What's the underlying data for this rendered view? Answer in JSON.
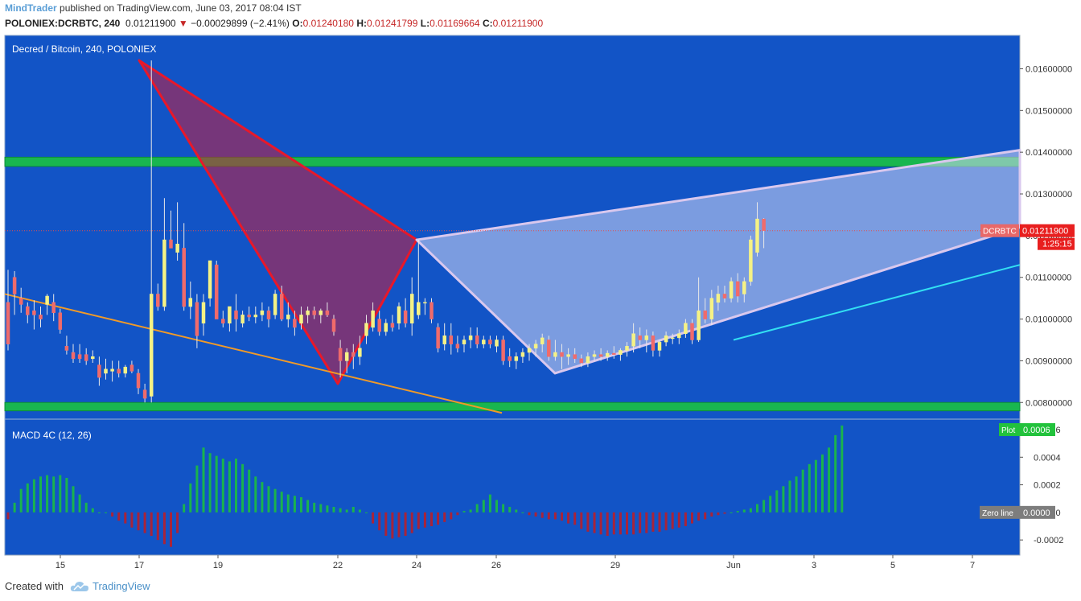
{
  "header": {
    "author": "MindTrader",
    "published": "published on TradingView.com, June 03, 2017 08:04 IST",
    "symbol": "POLONIEX:DCRBTC, 240",
    "last": "0.01211900",
    "arrow": "▼",
    "change": "−0.00029899 (−2.41%)",
    "o_label": "O:",
    "o_value": "0.01240180",
    "h_label": "H:",
    "h_value": "0.01241799",
    "l_label": "L:",
    "l_value": "0.01169664",
    "c_label": "C:",
    "c_value": "0.01211900"
  },
  "pane_title": "Decred / Bitcoin, 240, POLONIEX",
  "price_label": {
    "tag": "DCRBTC",
    "value": "0.01211900",
    "countdown": "1:25:15"
  },
  "macd_title": "MACD 4C (12, 26)",
  "macd_labels": {
    "plot_tag": "Plot",
    "plot_value": "0.0006",
    "zero_tag": "Zero line",
    "zero_value": "0.0000"
  },
  "footer": {
    "created_with": "Created with",
    "brand": "TradingView"
  },
  "colors": {
    "background": "#1254c6",
    "up_candle": "#f5f285",
    "down_candle": "#f06b6b",
    "zone": "#19b64f",
    "red_pattern": "#e8182a",
    "white_pattern": "#d9c8ee",
    "trendline_orange": "#f09a28",
    "trendline_cyan": "#33e0f2",
    "macd_green": "#1ab34d",
    "macd_red": "#a8243a"
  },
  "chart_data": [
    {
      "type": "candlestick",
      "title": "Decred / Bitcoin, 240, POLONIEX",
      "x_ticks": [
        "15",
        "17",
        "19",
        "22",
        "24",
        "26",
        "29",
        "Jun",
        "3",
        "5",
        "7"
      ],
      "y_ticks": [
        "0.00800000",
        "0.00900000",
        "0.01000000",
        "0.01100000",
        "0.01200000",
        "0.01300000",
        "0.01400000",
        "0.01500000",
        "0.01600000"
      ],
      "ylim": [
        0.0076,
        0.0168
      ],
      "grid": false,
      "last_price": 0.012119,
      "candles": [
        [
          0.0104,
          0.01118,
          0.00925,
          0.0094
        ],
        [
          0.011,
          0.01115,
          0.0101,
          0.0106
        ],
        [
          0.0105,
          0.01075,
          0.01015,
          0.01035
        ],
        [
          0.0103,
          0.0104,
          0.0099,
          0.0101
        ],
        [
          0.0102,
          0.01045,
          0.00975,
          0.0101
        ],
        [
          0.0101,
          0.0103,
          0.0098,
          0.01
        ],
        [
          0.01035,
          0.0106,
          0.0101,
          0.01055
        ],
        [
          0.0104,
          0.0106,
          0.00995,
          0.01015
        ],
        [
          0.01015,
          0.01025,
          0.00965,
          0.00975
        ],
        [
          0.00935,
          0.0096,
          0.00915,
          0.00925
        ],
        [
          0.0092,
          0.0094,
          0.00895,
          0.00905
        ],
        [
          0.00915,
          0.0094,
          0.00895,
          0.00905
        ],
        [
          0.00915,
          0.0093,
          0.0089,
          0.009
        ],
        [
          0.00905,
          0.00925,
          0.00895,
          0.0091
        ],
        [
          0.0089,
          0.0091,
          0.0084,
          0.0086
        ],
        [
          0.0087,
          0.00905,
          0.00855,
          0.0088
        ],
        [
          0.00875,
          0.009,
          0.0085,
          0.0088
        ],
        [
          0.0088,
          0.009,
          0.0086,
          0.0087
        ],
        [
          0.0087,
          0.0089,
          0.0086,
          0.00885
        ],
        [
          0.0089,
          0.009,
          0.0087,
          0.00875
        ],
        [
          0.0087,
          0.0088,
          0.0082,
          0.00835
        ],
        [
          0.0083,
          0.00845,
          0.008,
          0.0081
        ],
        [
          0.00815,
          0.0162,
          0.008,
          0.0106
        ],
        [
          0.0106,
          0.01085,
          0.0102,
          0.0103
        ],
        [
          0.0103,
          0.0129,
          0.0102,
          0.0119
        ],
        [
          0.0119,
          0.0126,
          0.0117,
          0.0117
        ],
        [
          0.0116,
          0.0128,
          0.0114,
          0.0118
        ],
        [
          0.0117,
          0.0123,
          0.0102,
          0.0103
        ],
        [
          0.0103,
          0.0109,
          0.01,
          0.0105
        ],
        [
          0.0104,
          0.0106,
          0.0093,
          0.0096
        ],
        [
          0.0099,
          0.0106,
          0.0096,
          0.0104
        ],
        [
          0.0105,
          0.0114,
          0.0103,
          0.0114
        ],
        [
          0.0113,
          0.0114,
          0.01,
          0.01
        ],
        [
          0.01,
          0.0102,
          0.0098,
          0.0099
        ],
        [
          0.0099,
          0.0103,
          0.0097,
          0.0103
        ],
        [
          0.0102,
          0.0106,
          0.0097,
          0.01
        ],
        [
          0.0099,
          0.0102,
          0.0098,
          0.0101
        ],
        [
          0.0101,
          0.0103,
          0.00995,
          0.01005
        ],
        [
          0.01005,
          0.0103,
          0.0099,
          0.0101
        ],
        [
          0.0101,
          0.0104,
          0.00995,
          0.0102
        ],
        [
          0.0102,
          0.0103,
          0.0098,
          0.01
        ],
        [
          0.0101,
          0.0107,
          0.01,
          0.0106
        ],
        [
          0.0106,
          0.0108,
          0.00995,
          0.01
        ],
        [
          0.01,
          0.0104,
          0.0098,
          0.0101
        ],
        [
          0.01,
          0.0102,
          0.0096,
          0.0098
        ],
        [
          0.0099,
          0.0103,
          0.00975,
          0.0101
        ],
        [
          0.0101,
          0.0103,
          0.0099,
          0.0102
        ],
        [
          0.0102,
          0.0103,
          0.01,
          0.0101
        ],
        [
          0.0101,
          0.01025,
          0.0099,
          0.0102
        ],
        [
          0.0102,
          0.0104,
          0.01005,
          0.0101
        ],
        [
          0.01,
          0.0101,
          0.0096,
          0.0097
        ],
        [
          0.0093,
          0.0095,
          0.0086,
          0.009
        ],
        [
          0.009,
          0.0093,
          0.0087,
          0.0092
        ],
        [
          0.0092,
          0.0094,
          0.0088,
          0.0091
        ],
        [
          0.0091,
          0.0096,
          0.0089,
          0.0093
        ],
        [
          0.0096,
          0.0101,
          0.0094,
          0.0099
        ],
        [
          0.0098,
          0.0104,
          0.0097,
          0.0102
        ],
        [
          0.01,
          0.0102,
          0.0096,
          0.0097
        ],
        [
          0.0097,
          0.01,
          0.0096,
          0.0099
        ],
        [
          0.0099,
          0.0101,
          0.0097,
          0.0098
        ],
        [
          0.0099,
          0.0104,
          0.00975,
          0.0103
        ],
        [
          0.0102,
          0.0105,
          0.0098,
          0.0099
        ],
        [
          0.0099,
          0.011,
          0.0096,
          0.0106
        ],
        [
          0.0101,
          0.0119,
          0.01,
          0.0104
        ],
        [
          0.0104,
          0.0105,
          0.0101,
          0.0104
        ],
        [
          0.0104,
          0.0105,
          0.0099,
          0.01
        ],
        [
          0.0098,
          0.0099,
          0.0092,
          0.0093
        ],
        [
          0.0094,
          0.0099,
          0.00925,
          0.0096
        ],
        [
          0.0096,
          0.0099,
          0.00915,
          0.0094
        ],
        [
          0.0094,
          0.0096,
          0.0092,
          0.0093
        ],
        [
          0.0094,
          0.0096,
          0.0092,
          0.0095
        ],
        [
          0.0095,
          0.0098,
          0.0093,
          0.0096
        ],
        [
          0.0096,
          0.0098,
          0.0093,
          0.0094
        ],
        [
          0.0094,
          0.0096,
          0.0093,
          0.0095
        ],
        [
          0.0095,
          0.0096,
          0.0093,
          0.0094
        ],
        [
          0.00935,
          0.0096,
          0.0092,
          0.0095
        ],
        [
          0.0095,
          0.0096,
          0.0089,
          0.009
        ],
        [
          0.0091,
          0.0093,
          0.00885,
          0.009
        ],
        [
          0.009,
          0.0092,
          0.0088,
          0.0091
        ],
        [
          0.0091,
          0.0093,
          0.00895,
          0.0092
        ],
        [
          0.0092,
          0.0094,
          0.009,
          0.0093
        ],
        [
          0.0093,
          0.0095,
          0.0091,
          0.0094
        ],
        [
          0.0094,
          0.00965,
          0.0092,
          0.00955
        ],
        [
          0.0095,
          0.0096,
          0.009,
          0.0091
        ],
        [
          0.0091,
          0.0095,
          0.009,
          0.0092
        ],
        [
          0.0092,
          0.0094,
          0.0088,
          0.0091
        ],
        [
          0.0091,
          0.0093,
          0.0089,
          0.00915
        ],
        [
          0.00915,
          0.0093,
          0.00895,
          0.00905
        ],
        [
          0.00905,
          0.00915,
          0.00885,
          0.00895
        ],
        [
          0.00895,
          0.0092,
          0.00885,
          0.0091
        ],
        [
          0.0091,
          0.00925,
          0.009,
          0.00915
        ],
        [
          0.00915,
          0.0093,
          0.009,
          0.0091
        ],
        [
          0.0091,
          0.00925,
          0.009,
          0.00918
        ],
        [
          0.00918,
          0.00935,
          0.00905,
          0.00915
        ],
        [
          0.00915,
          0.0093,
          0.009,
          0.00925
        ],
        [
          0.00925,
          0.00945,
          0.0091,
          0.00935
        ],
        [
          0.00935,
          0.0099,
          0.0092,
          0.00965
        ],
        [
          0.0096,
          0.0098,
          0.0093,
          0.0095
        ],
        [
          0.0095,
          0.00975,
          0.0092,
          0.0096
        ],
        [
          0.0096,
          0.0097,
          0.0091,
          0.00925
        ],
        [
          0.00925,
          0.0095,
          0.0091,
          0.00945
        ],
        [
          0.00945,
          0.0097,
          0.00935,
          0.0096
        ],
        [
          0.00955,
          0.00965,
          0.0094,
          0.00955
        ],
        [
          0.00955,
          0.00975,
          0.0094,
          0.00965
        ],
        [
          0.00965,
          0.01,
          0.00955,
          0.0099
        ],
        [
          0.0099,
          0.01,
          0.0094,
          0.0095
        ],
        [
          0.0095,
          0.011,
          0.00945,
          0.0102
        ],
        [
          0.0102,
          0.0105,
          0.0099,
          0.01
        ],
        [
          0.01,
          0.0107,
          0.00985,
          0.0105
        ],
        [
          0.0104,
          0.0108,
          0.0102,
          0.0106
        ],
        [
          0.0106,
          0.0108,
          0.0104,
          0.0105
        ],
        [
          0.0105,
          0.011,
          0.0104,
          0.0109
        ],
        [
          0.0109,
          0.0111,
          0.0104,
          0.01055
        ],
        [
          0.0106,
          0.011,
          0.0104,
          0.0109
        ],
        [
          0.0109,
          0.012,
          0.0108,
          0.0119
        ],
        [
          0.0116,
          0.0128,
          0.0115,
          0.0124
        ],
        [
          0.0124,
          0.01242,
          0.0117,
          0.01212
        ]
      ],
      "horizontal_zones": [
        {
          "from": 0.01366,
          "to": 0.01388
        },
        {
          "from": 0.0078,
          "to": 0.008
        }
      ],
      "price_line": 0.012119,
      "trendlines": [
        {
          "color": "orange",
          "from": {
            "x": "14 May",
            "y": 0.0106
          },
          "to": {
            "x": "26 May",
            "y": 0.00775
          }
        },
        {
          "color": "cyan",
          "from": {
            "x": "1 Jun",
            "y": 0.0095
          },
          "to": {
            "x": "7 Jun",
            "y": 0.0113
          }
        }
      ],
      "patterns": [
        {
          "name": "red triangle",
          "points": [
            {
              "x": "17 May",
              "y": 0.0162
            },
            {
              "x": "22 May",
              "y": 0.00845
            },
            {
              "x": "24 May",
              "y": 0.0119
            }
          ]
        },
        {
          "name": "white wedge",
          "points": [
            {
              "x": "24 May",
              "y": 0.0119
            },
            {
              "x": "27 May",
              "y": 0.0087
            },
            {
              "x": "7 Jun",
              "y": 0.0122
            },
            {
              "x": "7 Jun",
              "y": 0.01405
            }
          ]
        }
      ]
    },
    {
      "type": "bar",
      "title": "MACD 4C (12, 26)",
      "y_ticks": [
        "-0.0002",
        "0.0000",
        "0.0002",
        "0.0004",
        "0.0006"
      ],
      "ylim": [
        -0.00031,
        0.00067
      ],
      "last_value": 0.0006,
      "values": [
        -5e-05,
        7e-05,
        0.00017,
        0.00021,
        0.00024,
        0.00026,
        0.00027,
        0.00026,
        0.00027,
        0.00025,
        0.00019,
        0.00013,
        7e-05,
        3e-05,
        0.0,
        0.0,
        -3e-05,
        -6e-05,
        -8e-05,
        -0.00011,
        -0.00013,
        -0.00015,
        -0.00017,
        -0.0002,
        -0.00023,
        -0.00025,
        -0.00015,
        6e-05,
        0.00021,
        0.00034,
        0.00047,
        0.00043,
        0.00041,
        0.00039,
        0.00037,
        0.00039,
        0.00035,
        0.00031,
        0.00026,
        0.00022,
        0.00019,
        0.00017,
        0.00015,
        0.00013,
        0.00012,
        0.00011,
        9e-05,
        7e-05,
        6e-05,
        5e-05,
        4e-05,
        3e-05,
        2e-05,
        4e-05,
        2e-05,
        0.0,
        -8e-05,
        -0.00013,
        -0.00017,
        -0.00019,
        -0.00018,
        -0.00017,
        -0.00015,
        -0.00012,
        -0.00011,
        -0.0001,
        -9e-05,
        -7e-05,
        -5e-05,
        -2e-05,
        1e-05,
        2e-05,
        6e-05,
        9e-05,
        0.00013,
        9e-05,
        6e-05,
        4e-05,
        2e-05,
        0.0,
        -2e-05,
        -3e-05,
        -4e-05,
        -5e-05,
        -5e-05,
        -6e-05,
        -8e-05,
        -9e-05,
        -0.00012,
        -0.00014,
        -0.00015,
        -0.00016,
        -0.00017,
        -0.00016,
        -0.00016,
        -0.00016,
        -0.00016,
        -0.00015,
        -0.00015,
        -0.00014,
        -0.00014,
        -0.00013,
        -0.00012,
        -0.00011,
        -0.0001,
        -8e-05,
        -6e-05,
        -5e-05,
        -3e-05,
        -2e-05,
        -1e-05,
        0.0,
        1e-05,
        2e-05,
        3e-05,
        6e-05,
        9e-05,
        0.00012,
        0.00016,
        0.00019,
        0.00023,
        0.00026,
        0.00031,
        0.00035,
        0.00038,
        0.00042,
        0.00047,
        0.00056,
        0.00063
      ]
    }
  ]
}
